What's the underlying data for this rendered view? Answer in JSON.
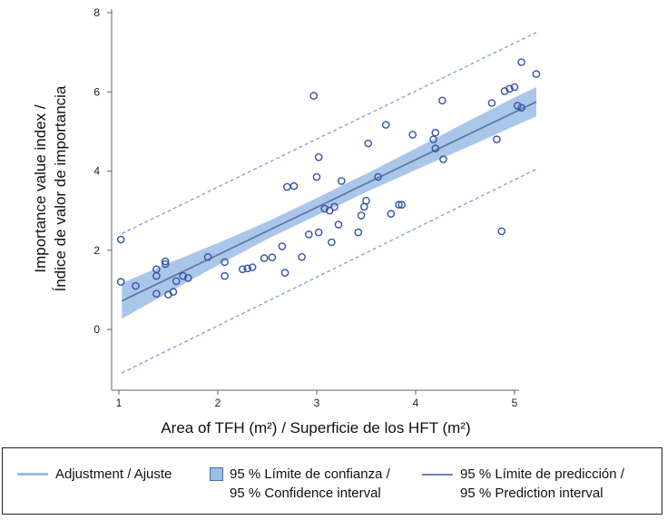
{
  "legend": {
    "fit_label": "Adjustment / Ajuste",
    "ci_line1": "95 % Límite de confianza /",
    "ci_line2": "95 % Confidence interval",
    "pi_line1": "95 % Límite de predicción /",
    "pi_line2": "95 % Prediction interval"
  },
  "colors": {
    "fit": "#5f78a8",
    "ci_band": "#9bbde6",
    "pi_line": "#7f9ee0",
    "points": "#3553a6"
  },
  "chart_data": {
    "type": "scatter",
    "xlabel": "Area of TFH (m²) / Superficie de los HFT (m²)",
    "ylabel_line1": "Importance value index /",
    "ylabel_line2": "Índice de valor de importancia",
    "xlim": [
      1,
      5.25
    ],
    "ylim": [
      -1.2,
      8
    ],
    "xticks": [
      1,
      2,
      3,
      4,
      5
    ],
    "yticks": [
      0,
      2,
      4,
      6,
      8
    ],
    "fit": {
      "x": [
        1.03,
        5.22
      ],
      "y": [
        0.72,
        5.75
      ]
    },
    "confidence_band": {
      "x": [
        1.03,
        1.5,
        2,
        2.5,
        3,
        3.3,
        3.5,
        4,
        4.5,
        5,
        5.22
      ],
      "lower": [
        0.27,
        0.93,
        1.62,
        2.28,
        2.88,
        3.23,
        3.47,
        4.03,
        4.58,
        5.14,
        5.38
      ],
      "upper": [
        1.17,
        1.67,
        2.18,
        2.72,
        3.32,
        3.69,
        3.93,
        4.57,
        5.22,
        5.86,
        6.12
      ]
    },
    "prediction_interval": {
      "x": [
        1.03,
        5.22
      ],
      "upper": [
        2.42,
        7.5
      ],
      "lower": [
        -1.1,
        4.05
      ]
    },
    "points": [
      {
        "x": 1.02,
        "y": 2.27
      },
      {
        "x": 1.02,
        "y": 1.2
      },
      {
        "x": 1.17,
        "y": 1.1
      },
      {
        "x": 1.38,
        "y": 1.52
      },
      {
        "x": 1.38,
        "y": 1.35
      },
      {
        "x": 1.38,
        "y": 0.9
      },
      {
        "x": 1.47,
        "y": 1.72
      },
      {
        "x": 1.47,
        "y": 1.65
      },
      {
        "x": 1.5,
        "y": 0.88
      },
      {
        "x": 1.55,
        "y": 0.95
      },
      {
        "x": 1.58,
        "y": 1.22
      },
      {
        "x": 1.65,
        "y": 1.35
      },
      {
        "x": 1.7,
        "y": 1.3
      },
      {
        "x": 1.9,
        "y": 1.83
      },
      {
        "x": 2.07,
        "y": 1.7
      },
      {
        "x": 2.07,
        "y": 1.35
      },
      {
        "x": 2.25,
        "y": 1.52
      },
      {
        "x": 2.3,
        "y": 1.54
      },
      {
        "x": 2.35,
        "y": 1.57
      },
      {
        "x": 2.47,
        "y": 1.8
      },
      {
        "x": 2.55,
        "y": 1.82
      },
      {
        "x": 2.65,
        "y": 2.1
      },
      {
        "x": 2.68,
        "y": 1.43
      },
      {
        "x": 2.7,
        "y": 3.6
      },
      {
        "x": 2.77,
        "y": 3.62
      },
      {
        "x": 2.85,
        "y": 1.83
      },
      {
        "x": 2.92,
        "y": 2.4
      },
      {
        "x": 2.97,
        "y": 5.9
      },
      {
        "x": 3.0,
        "y": 3.85
      },
      {
        "x": 3.02,
        "y": 4.35
      },
      {
        "x": 3.02,
        "y": 2.45
      },
      {
        "x": 3.08,
        "y": 3.05
      },
      {
        "x": 3.13,
        "y": 3.0
      },
      {
        "x": 3.15,
        "y": 2.2
      },
      {
        "x": 3.18,
        "y": 3.1
      },
      {
        "x": 3.22,
        "y": 2.65
      },
      {
        "x": 3.25,
        "y": 3.75
      },
      {
        "x": 3.42,
        "y": 2.45
      },
      {
        "x": 3.45,
        "y": 2.88
      },
      {
        "x": 3.48,
        "y": 3.1
      },
      {
        "x": 3.5,
        "y": 3.25
      },
      {
        "x": 3.52,
        "y": 4.7
      },
      {
        "x": 3.62,
        "y": 3.85
      },
      {
        "x": 3.7,
        "y": 5.17
      },
      {
        "x": 3.75,
        "y": 2.92
      },
      {
        "x": 3.83,
        "y": 3.15
      },
      {
        "x": 3.86,
        "y": 3.15
      },
      {
        "x": 3.97,
        "y": 4.92
      },
      {
        "x": 4.18,
        "y": 4.8
      },
      {
        "x": 4.2,
        "y": 4.97
      },
      {
        "x": 4.2,
        "y": 4.57
      },
      {
        "x": 4.27,
        "y": 5.78
      },
      {
        "x": 4.28,
        "y": 4.3
      },
      {
        "x": 4.77,
        "y": 5.72
      },
      {
        "x": 4.82,
        "y": 4.8
      },
      {
        "x": 4.87,
        "y": 2.48
      },
      {
        "x": 4.9,
        "y": 6.02
      },
      {
        "x": 4.95,
        "y": 6.08
      },
      {
        "x": 5.0,
        "y": 6.12
      },
      {
        "x": 5.03,
        "y": 5.65
      },
      {
        "x": 5.07,
        "y": 5.6
      },
      {
        "x": 5.07,
        "y": 6.75
      },
      {
        "x": 5.22,
        "y": 6.45
      }
    ]
  }
}
